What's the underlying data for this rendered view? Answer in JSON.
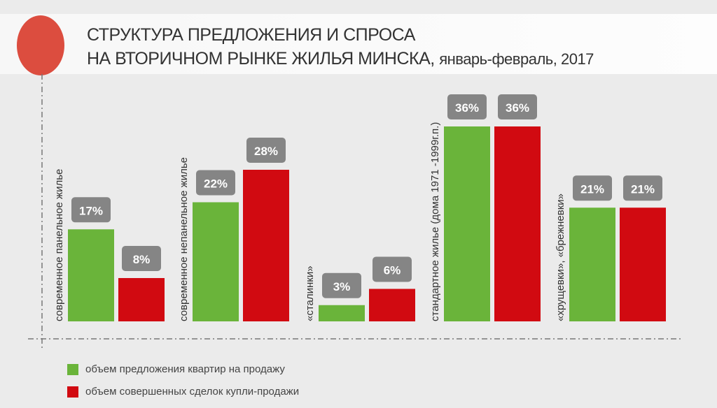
{
  "title": {
    "line1": "СТРУКТУРА ПРЕДЛОЖЕНИЯ И СПРОСА",
    "line2": "НА ВТОРИЧНОМ РЫНКЕ ЖИЛЬЯ МИНСКА,",
    "subtitle": "январь-февраль, 2017"
  },
  "chart_data": {
    "type": "bar",
    "categories": [
      "современное панельное жилье",
      "современное непанельное жилье",
      "«сталинки»",
      "стандартное  жилье (дома 1971 -1999г.п.)",
      "«хрущевки», «брежневки»"
    ],
    "series": [
      {
        "name": "объем предложения квартир на продажу",
        "color": "#6ab43a",
        "values": [
          17,
          22,
          3,
          36,
          21
        ]
      },
      {
        "name": "объем совершенных сделок купли-продажи",
        "color": "#d10a11",
        "values": [
          8,
          28,
          6,
          36,
          21
        ]
      }
    ],
    "value_suffix": "%",
    "ylim": [
      0,
      40
    ],
    "legend": "bottom-left",
    "grid": false
  }
}
